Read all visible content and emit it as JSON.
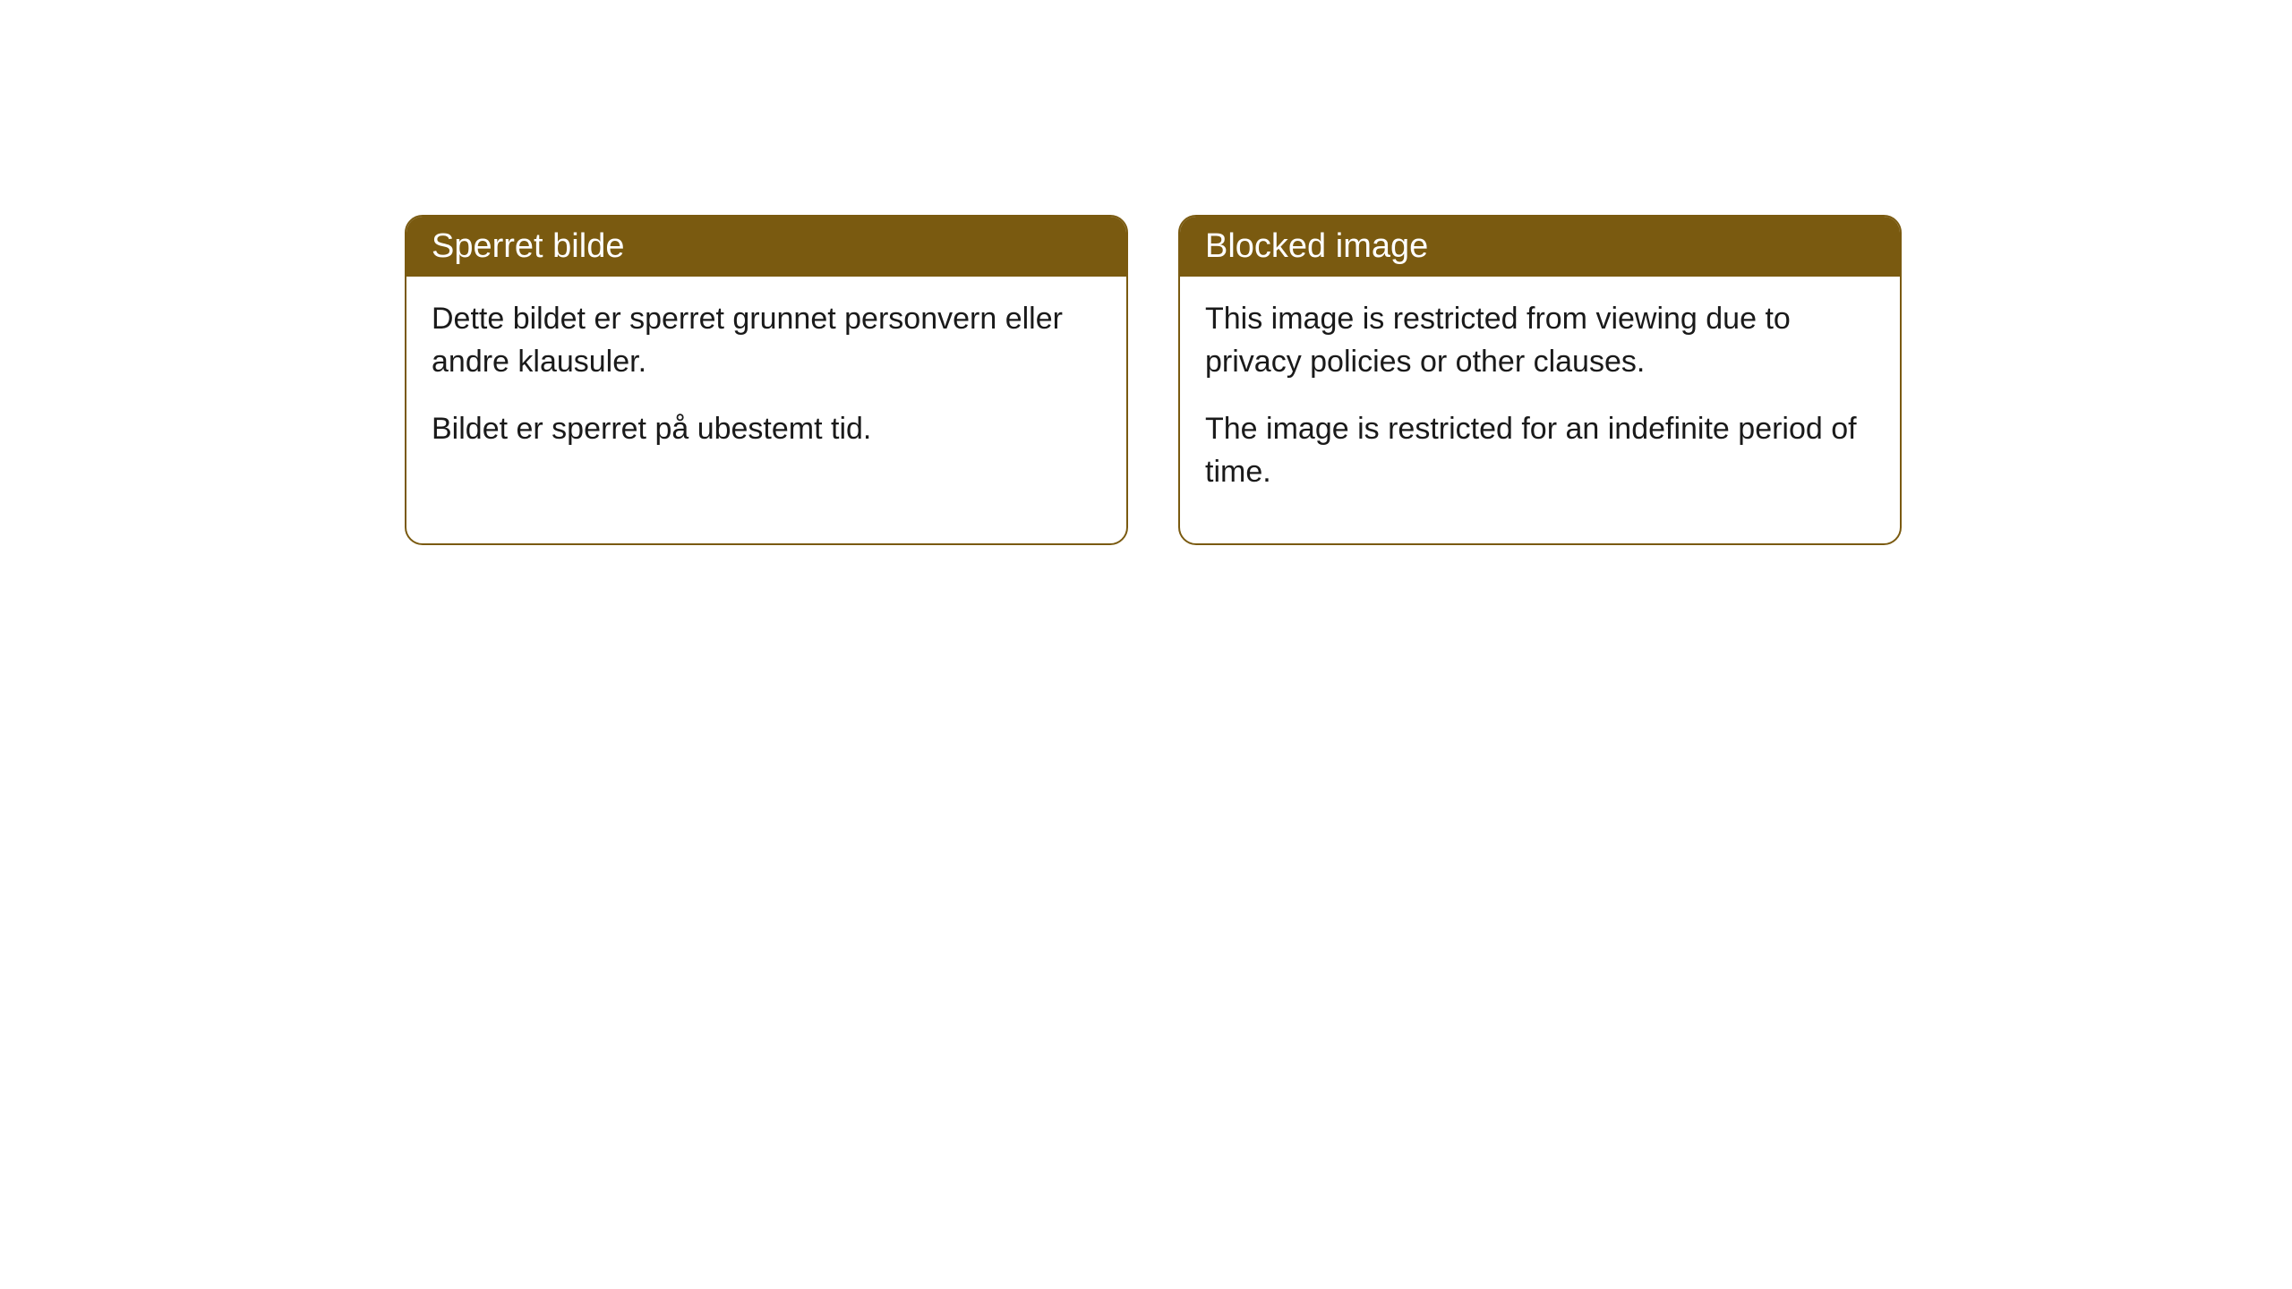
{
  "cards": [
    {
      "title": "Sperret bilde",
      "paragraph1": "Dette bildet er sperret grunnet personvern eller andre klausuler.",
      "paragraph2": "Bildet er sperret på ubestemt tid."
    },
    {
      "title": "Blocked image",
      "paragraph1": "This image is restricted from viewing due to privacy policies or other clauses.",
      "paragraph2": "The image is restricted for an indefinite period of time."
    }
  ],
  "style": {
    "header_bg_color": "#7a5a10",
    "header_text_color": "#ffffff",
    "border_color": "#7a5a10",
    "body_bg_color": "#ffffff",
    "body_text_color": "#1a1a1a",
    "border_radius": 20,
    "header_font_size": 38,
    "body_font_size": 34
  }
}
